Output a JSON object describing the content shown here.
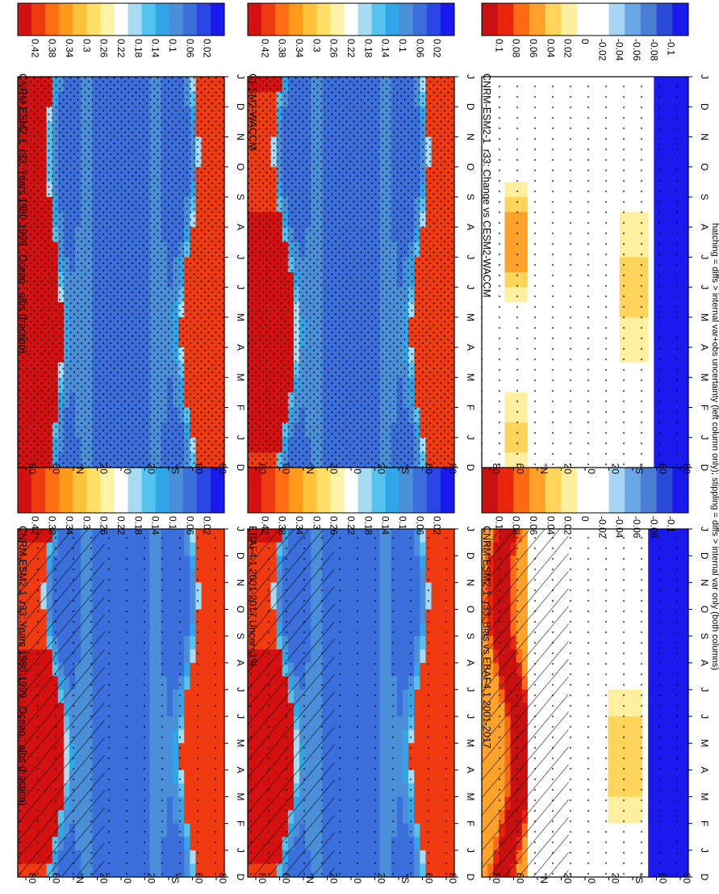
{
  "figure": {
    "footnote": "hatching = diffs > internal var+obs uncertainty (left column only); stippling = diffs > internal var only (both columns)"
  },
  "colors": {
    "abs_scale": [
      "#1a1aee",
      "#2a46e6",
      "#3a6fdc",
      "#4a8fd8",
      "#2ea6e8",
      "#55c3f0",
      "#a6dcf4",
      "#ffffff",
      "#fff3a8",
      "#ffe066",
      "#ffc23a",
      "#ff9a1a",
      "#ff6e12",
      "#f03a10",
      "#d41010"
    ],
    "diff_scale": [
      "#1a1aee",
      "#2c4ad8",
      "#4a7ed2",
      "#6aa6e6",
      "#a6d4f2",
      "#ffffff",
      "#ffffff",
      "#fff0a0",
      "#ffd45a",
      "#ffa22a",
      "#ff6a12",
      "#e8260c",
      "#c81010"
    ],
    "hatch": "#000000"
  },
  "chart_data": [
    {
      "type": "heatmap",
      "title": "CNRM-ESM2-1_r33: Years 1980-1999 : Ocean : albs (fraction)",
      "kind": "abs",
      "hatched": true,
      "stipple": "sparse",
      "x_ticks": [
        "D",
        "J",
        "F",
        "M",
        "A",
        "M",
        "J",
        "J",
        "A",
        "S",
        "O",
        "N",
        "D",
        "J"
      ],
      "y_ticks": [
        "80",
        "60",
        "°N",
        "20",
        "0",
        "20",
        "°S",
        "60",
        "80"
      ],
      "colorbar": [
        "0.42",
        "0.38",
        "0.34",
        "0.3",
        "0.26",
        "0.22",
        "0.18",
        "0.14",
        "0.1",
        "0.06",
        "0.02"
      ],
      "value_range": [
        0,
        0.44
      ]
    },
    {
      "type": "heatmap",
      "title": "CNRM-ESM2-1_r33: Years 1980-1999 : Ocean : albs (fraction)",
      "kind": "abs",
      "hatched": false,
      "stipple": "dense",
      "x_ticks": [
        "D",
        "J",
        "F",
        "M",
        "A",
        "M",
        "J",
        "J",
        "A",
        "S",
        "O",
        "N",
        "D",
        "J"
      ],
      "y_ticks": [
        "80",
        "60",
        "°N",
        "20",
        "0",
        "20",
        "°S",
        "60",
        "80"
      ],
      "colorbar": [
        "0.42",
        "0.38",
        "0.34",
        "0.3",
        "0.26",
        "0.22",
        "0.18",
        "0.14",
        "0.1",
        "0.06",
        "0.02"
      ],
      "value_range": [
        0,
        0.44
      ]
    },
    {
      "type": "heatmap",
      "title": "EBAF4.1 2001-2017 Uncer=1%",
      "kind": "abs",
      "hatched": true,
      "stipple": "sparse",
      "x_ticks": [
        "D",
        "J",
        "F",
        "M",
        "A",
        "M",
        "J",
        "J",
        "A",
        "S",
        "O",
        "N",
        "D",
        "J"
      ],
      "y_ticks": [
        "80",
        "60",
        "°N",
        "20",
        "0",
        "20",
        "°S",
        "60",
        "80"
      ],
      "colorbar": [
        "0.42",
        "0.38",
        "0.34",
        "0.3",
        "0.26",
        "0.22",
        "0.18",
        "0.14",
        "0.1",
        "0.06",
        "0.02"
      ],
      "value_range": [
        0,
        0.44
      ]
    },
    {
      "type": "heatmap",
      "title": "CESM2-WACCM",
      "kind": "abs",
      "hatched": false,
      "stipple": "dense",
      "x_ticks": [
        "D",
        "J",
        "F",
        "M",
        "A",
        "M",
        "J",
        "J",
        "A",
        "S",
        "O",
        "N",
        "D",
        "J"
      ],
      "y_ticks": [
        "80",
        "60",
        "°N",
        "20",
        "0",
        "20",
        "°S",
        "60",
        "80"
      ],
      "colorbar": [
        "0.42",
        "0.38",
        "0.34",
        "0.3",
        "0.26",
        "0.22",
        "0.18",
        "0.14",
        "0.1",
        "0.06",
        "0.02"
      ],
      "value_range": [
        0,
        0.44
      ]
    },
    {
      "type": "heatmap",
      "title": "CNRM-ESM2-1_r33: Bias vs EBAF4.1 2001-2017",
      "kind": "bias",
      "hatched": true,
      "stipple": "sparse",
      "x_ticks": [
        "D",
        "J",
        "F",
        "M",
        "A",
        "M",
        "J",
        "J",
        "A",
        "S",
        "O",
        "N",
        "D",
        "J"
      ],
      "y_ticks": [
        "80",
        "60",
        "°N",
        "20",
        "0",
        "20",
        "°S",
        "60",
        "80"
      ],
      "colorbar": [
        "0.1",
        "0.08",
        "0.06",
        "0.04",
        "0.02",
        "0",
        "-0.02",
        "-0.04",
        "-0.06",
        "-0.08",
        "-0.1"
      ],
      "value_range": [
        -0.12,
        0.12
      ]
    },
    {
      "type": "heatmap",
      "title": "CNRM-ESM2-1_r33: Change vs CESM2-WACCM",
      "kind": "change",
      "hatched": false,
      "stipple": "sparse",
      "x_ticks": [
        "D",
        "J",
        "F",
        "M",
        "A",
        "M",
        "J",
        "J",
        "A",
        "S",
        "O",
        "N",
        "D",
        "J"
      ],
      "y_ticks": [
        "80",
        "60",
        "°N",
        "20",
        "0",
        "20",
        "°S",
        "60",
        "80"
      ],
      "colorbar": [
        "0.1",
        "0.08",
        "0.06",
        "0.04",
        "0.02",
        "0",
        "-0.02",
        "-0.04",
        "-0.06",
        "-0.08",
        "-0.1"
      ],
      "value_range": [
        -0.12,
        0.12
      ]
    }
  ]
}
